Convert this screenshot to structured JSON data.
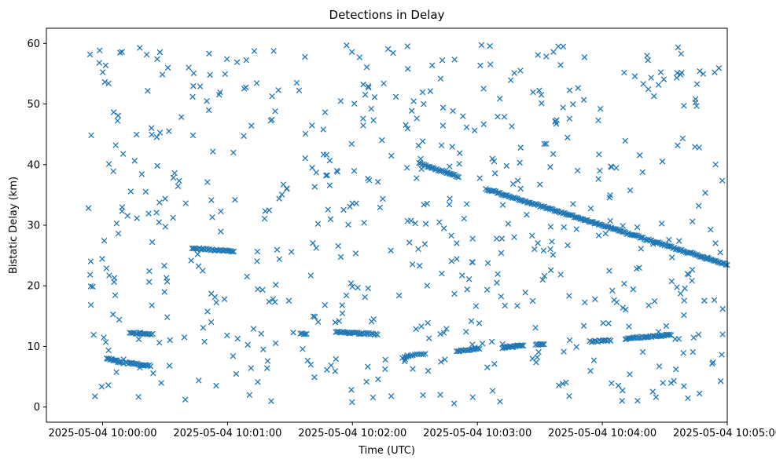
{
  "chart_data": {
    "type": "scatter",
    "title": "Detections in Delay",
    "xlabel": "Time (UTC)",
    "ylabel": "Bistatic Delay (km)",
    "marker": "x",
    "color": "#1f77b4",
    "grid": false,
    "legend": "none",
    "xlim": [
      "2025-05-04 09:59:33",
      "2025-05-04 10:05:00"
    ],
    "ylim": [
      -2.5,
      62.5
    ],
    "x_ticks": [
      "2025-05-04 10:00:00",
      "2025-05-04 10:01:00",
      "2025-05-04 10:02:00",
      "2025-05-04 10:03:00",
      "2025-05-04 10:04:00",
      "2025-05-04 10:05:00"
    ],
    "y_ticks": [
      "0",
      "10",
      "20",
      "30",
      "40",
      "50",
      "60"
    ],
    "tracks": [
      {
        "start": [
          "2025-05-04 10:00:02",
          8.0
        ],
        "end": [
          "2025-05-04 10:00:10",
          7.3
        ],
        "points": 16
      },
      {
        "start": [
          "2025-05-04 10:00:11",
          7.3
        ],
        "end": [
          "2025-05-04 10:00:23",
          6.8
        ],
        "points": 20
      },
      {
        "start": [
          "2025-05-04 10:00:13",
          12.2
        ],
        "end": [
          "2025-05-04 10:00:24",
          12.0
        ],
        "points": 16
      },
      {
        "start": [
          "2025-05-04 10:00:43",
          26.2
        ],
        "end": [
          "2025-05-04 10:01:03",
          25.7
        ],
        "points": 30
      },
      {
        "start": [
          "2025-05-04 10:01:35",
          12.1
        ],
        "end": [
          "2025-05-04 10:01:38",
          12.1
        ],
        "points": 5
      },
      {
        "start": [
          "2025-05-04 10:01:52",
          12.4
        ],
        "end": [
          "2025-05-04 10:02:12",
          12.0
        ],
        "points": 30
      },
      {
        "start": [
          "2025-05-04 10:02:24",
          8.2
        ],
        "end": [
          "2025-05-04 10:02:35",
          8.9
        ],
        "points": 12
      },
      {
        "start": [
          "2025-05-04 10:02:32",
          40.2
        ],
        "end": [
          "2025-05-04 10:02:51",
          38.0
        ],
        "points": 30
      },
      {
        "start": [
          "2025-05-04 10:02:50",
          9.2
        ],
        "end": [
          "2025-05-04 10:03:01",
          9.6
        ],
        "points": 16
      },
      {
        "start": [
          "2025-05-04 10:03:04",
          36.0
        ],
        "end": [
          "2025-05-04 10:05:00",
          23.5
        ],
        "points": 170
      },
      {
        "start": [
          "2025-05-04 10:03:12",
          9.8
        ],
        "end": [
          "2025-05-04 10:03:22",
          10.2
        ],
        "points": 20
      },
      {
        "start": [
          "2025-05-04 10:03:28",
          10.3
        ],
        "end": [
          "2025-05-04 10:03:32",
          10.4
        ],
        "points": 8
      },
      {
        "start": [
          "2025-05-04 10:03:54",
          10.8
        ],
        "end": [
          "2025-05-04 10:04:04",
          11.0
        ],
        "points": 14
      },
      {
        "start": [
          "2025-05-04 10:04:11",
          11.3
        ],
        "end": [
          "2025-05-04 10:04:33",
          11.9
        ],
        "points": 34
      }
    ],
    "clutter": {
      "description_points": 600,
      "x_range": [
        "2025-05-04 09:59:53",
        "2025-05-04 10:04:58"
      ],
      "y_range": [
        0.5,
        59.8
      ]
    }
  }
}
